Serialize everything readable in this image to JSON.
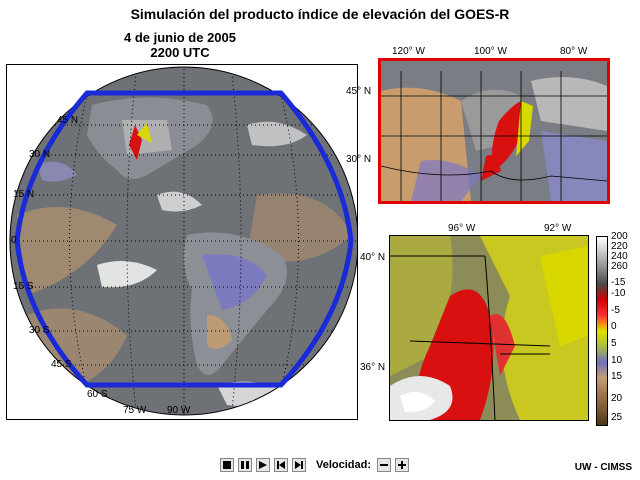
{
  "title": "Simulación del producto índice de elevación del GOES-R",
  "date_line": "4 de junio de 2005",
  "time_line": "2200 UTC",
  "us_panel": {
    "lon_labels": [
      "120° W",
      "100° W",
      "80° W"
    ],
    "lat_labels": [
      "45° N",
      "30° N"
    ]
  },
  "zoom_panel": {
    "lon_labels": [
      "96° W",
      "92° W"
    ],
    "lat_labels": [
      "40° N",
      "36° N"
    ]
  },
  "disk_panel": {
    "lat_labels": [
      "45 N",
      "30 N",
      "15 N",
      "0",
      "15 S",
      "30 S",
      "45 S",
      "60 S"
    ],
    "lon_labels": [
      "75 W",
      "90 W"
    ]
  },
  "colorbar": {
    "labels": [
      "200",
      "220",
      "240",
      "260",
      "-15",
      "-10",
      "-5",
      "0",
      "5",
      "10",
      "15",
      "20",
      "25"
    ],
    "colors": [
      "#ffffff",
      "#c8c8c8",
      "#8c8c8c",
      "#4a4a4a",
      "#d00000",
      "#ff3030",
      "#e0e000",
      "#a8c040",
      "#7070c0",
      "#c0a070",
      "#a07848",
      "#7a5a30",
      "#4a3418"
    ]
  },
  "controls": {
    "icons": [
      "stop-icon",
      "pause-icon",
      "play-icon",
      "step-back-icon",
      "step-forward-icon"
    ],
    "speed_label": "Velocidad:",
    "speed_icons": [
      "minus-icon",
      "plus-icon"
    ]
  },
  "credit": "UW - CIMSS"
}
